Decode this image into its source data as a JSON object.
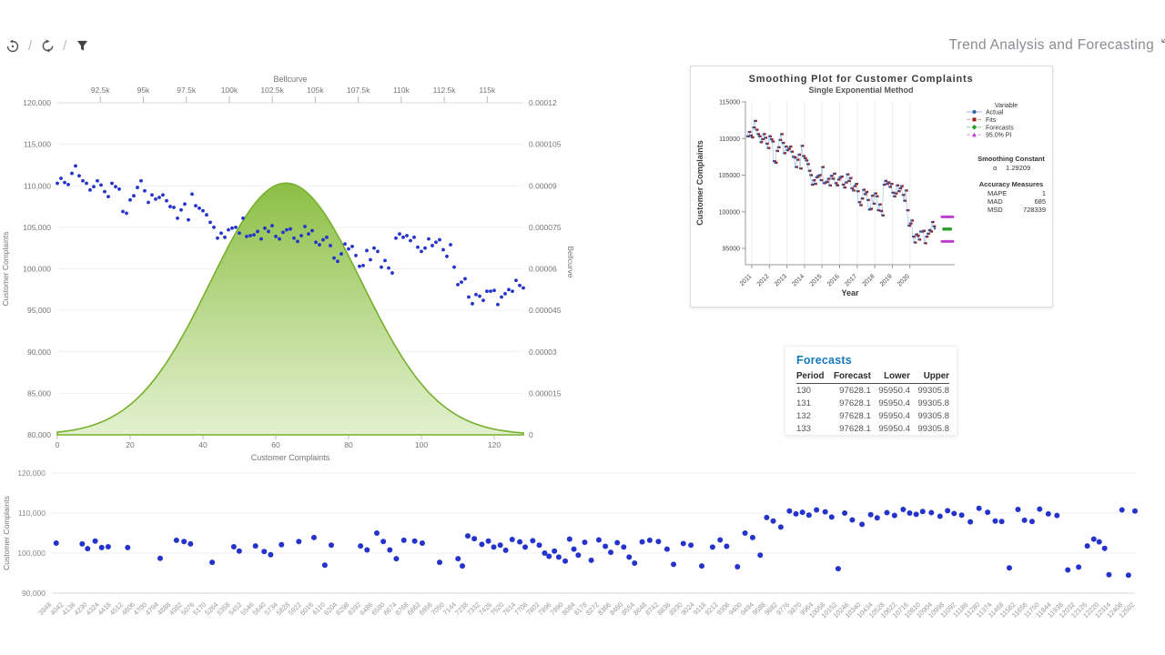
{
  "header": {
    "title": "Trend Analysis and Forecasting"
  },
  "toolbar": {
    "separator": "/",
    "icons": [
      "undo-history-icon",
      "refresh-icon",
      "filter-icon"
    ]
  },
  "forecasts_table": {
    "title": "Forecasts",
    "columns": [
      "Period",
      "Forecast",
      "Lower",
      "Upper"
    ],
    "rows": [
      [
        "130",
        "97628.1",
        "95950.4",
        "99305.8"
      ],
      [
        "131",
        "97628.1",
        "95950.4",
        "99305.8"
      ],
      [
        "132",
        "97628.1",
        "95950.4",
        "99305.8"
      ],
      [
        "133",
        "97628.1",
        "95950.4",
        "99305.8"
      ]
    ]
  },
  "chart_data": [
    {
      "id": "main",
      "type": "scatter+area",
      "top_axis": {
        "title": "Bellcurve",
        "ticks": [
          "92.5k",
          "95k",
          "97.5k",
          "100k",
          "102.5k",
          "105k",
          "107.5k",
          "110k",
          "112.5k",
          "115k"
        ],
        "tick_values": [
          92500,
          95000,
          97500,
          100000,
          102500,
          105000,
          107500,
          110000,
          112500,
          115000
        ],
        "range": [
          90000,
          117100
        ]
      },
      "left_axis": {
        "title": "Customer Complaints",
        "ticks": [
          "120,000",
          "115,000",
          "110,000",
          "105,000",
          "100,000",
          "95,000",
          "90,000",
          "85,000",
          "80,000"
        ],
        "tick_values": [
          120000,
          115000,
          110000,
          105000,
          100000,
          95000,
          90000,
          85000,
          80000
        ],
        "range": [
          80000,
          120000
        ]
      },
      "right_axis": {
        "title": "Bellcurve",
        "ticks": [
          "0.00012",
          "0.000105",
          "0.00009",
          "0.000075",
          "0.00006",
          "0.000045",
          "0.00003",
          "0.000015",
          "0"
        ],
        "tick_values": [
          0.00012,
          0.000105,
          9e-05,
          7.5e-05,
          6e-05,
          4.5e-05,
          3e-05,
          1.5e-05,
          0
        ],
        "range": [
          0,
          0.00012
        ]
      },
      "bottom_axis": {
        "title": "Customer Complaints",
        "ticks": [
          "0",
          "20",
          "40",
          "60",
          "80",
          "100",
          "120"
        ],
        "tick_values": [
          0,
          20,
          40,
          60,
          80,
          100,
          120
        ],
        "range": [
          0,
          128
        ]
      },
      "scatter_color": "#2433cb",
      "bellcurve": {
        "mean": 103300,
        "sigma": 4400,
        "peak": 9.1e-05,
        "stroke": "#76b02c",
        "fill_top": "#86bb3a",
        "fill_bottom": "#ddeec6"
      },
      "series": [
        110300,
        110900,
        110400,
        110150,
        111500,
        112400,
        111200,
        110600,
        110300,
        109500,
        109900,
        110600,
        110100,
        109300,
        108700,
        110300,
        109900,
        109600,
        106900,
        106700,
        108300,
        108800,
        109800,
        110600,
        109400,
        108000,
        108900,
        108400,
        108600,
        108900,
        108200,
        107500,
        107400,
        106100,
        107100,
        107800,
        105900,
        109000,
        107600,
        107300,
        107000,
        106500,
        105600,
        105000,
        103700,
        104300,
        103800,
        104700,
        104900,
        105000,
        104300,
        106100,
        103900,
        104000,
        104100,
        104500,
        103600,
        104900,
        104500,
        105200,
        103900,
        103600,
        104400,
        104700,
        104800,
        103700,
        103300,
        104000,
        105100,
        104200,
        104600,
        103200,
        102900,
        103500,
        103800,
        102800,
        101300,
        100900,
        101800,
        103000,
        102400,
        102700,
        101600,
        100300,
        100400,
        102200,
        101100,
        102500,
        102100,
        100200,
        101000,
        100100,
        99500,
        103700,
        104200,
        103800,
        104000,
        103400,
        103800,
        102600,
        102100,
        102500,
        103600,
        102800,
        103200,
        103500,
        102300,
        101500,
        102900,
        100200,
        98100,
        98400,
        98800,
        96600,
        95800,
        96900,
        96700,
        96200,
        97300,
        97300,
        97400,
        95700,
        96600,
        97000,
        97500,
        97300,
        98600,
        98000,
        97700
      ]
    },
    {
      "id": "smoothing",
      "type": "line",
      "title": "Smoothing Plot for Customer Complaints",
      "subtitle": "Single Exponential Method",
      "xlabel": "Year",
      "ylabel": "Customer Complaints",
      "y_ticks": [
        "115000",
        "110000",
        "105000",
        "100000",
        "95000"
      ],
      "y_tick_values": [
        115000,
        110000,
        105000,
        100000,
        95000
      ],
      "x_ticks": [
        "2011",
        "2012",
        "2013",
        "2014",
        "2015",
        "2016",
        "2017",
        "2018",
        "2019",
        "2020"
      ],
      "legend": {
        "header": "Variable",
        "entries": [
          {
            "label": "Actual",
            "color": "#2f5fa5",
            "line": "#9db8d6",
            "marker": "circle",
            "dash": ""
          },
          {
            "label": "Fits",
            "color": "#9c2222",
            "line": "#d4a0a0",
            "marker": "square",
            "dash": "4 2"
          },
          {
            "label": "Forecasts",
            "color": "#2a9d2a",
            "line": "#8fcf8f",
            "marker": "diamond",
            "dash": "4 2"
          },
          {
            "label": "95.0% PI",
            "color": "#bb40cc",
            "line": "#dda0e6",
            "marker": "triangle",
            "dash": "4 2"
          }
        ]
      },
      "stats": {
        "smoothing_header": "Smoothing Constant",
        "alpha_label": "α",
        "alpha_value": "1.29209",
        "accuracy_header": "Accuracy Measures",
        "measures": [
          [
            "MAPE",
            "1"
          ],
          [
            "MAD",
            "685"
          ],
          [
            "MSD",
            "728339"
          ]
        ]
      },
      "fits_lag": 1,
      "forecast_value": 97628.1,
      "pi_upper": 99305.8,
      "pi_lower": 95950.4
    },
    {
      "id": "bottom",
      "type": "scatter",
      "left_axis": {
        "title": "Customer Complaints",
        "ticks": [
          "120,000",
          "110,000",
          "100,000",
          "90,000"
        ],
        "tick_values": [
          120000,
          110000,
          100000,
          90000
        ],
        "range": [
          90000,
          120000
        ]
      },
      "x_ticks": [
        "3948",
        "4042",
        "4136",
        "4230",
        "4324",
        "4418",
        "4512",
        "4606",
        "4700",
        "4794",
        "4888",
        "4982",
        "5076",
        "5170",
        "5264",
        "5358",
        "5452",
        "5546",
        "5640",
        "5734",
        "5828",
        "5922",
        "6016",
        "6110",
        "6204",
        "6298",
        "6392",
        "6486",
        "6580",
        "6674",
        "6768",
        "6862",
        "6956",
        "7050",
        "7144",
        "7238",
        "7332",
        "7426",
        "7520",
        "7614",
        "7708",
        "7802",
        "7896",
        "7990",
        "8084",
        "8178",
        "8272",
        "8366",
        "8460",
        "8554",
        "8648",
        "8742",
        "8836",
        "8930",
        "9024",
        "9118",
        "9212",
        "9306",
        "9400",
        "9494",
        "9588",
        "9682",
        "9776",
        "9870",
        "9964",
        "10058",
        "10152",
        "10246",
        "10340",
        "10434",
        "10528",
        "10622",
        "10716",
        "10810",
        "10904",
        "10998",
        "11092",
        "11186",
        "11280",
        "11374",
        "11468",
        "11562",
        "11656",
        "11750",
        "11844",
        "11938",
        "12032",
        "12126",
        "12220",
        "12314",
        "12408",
        "12502"
      ],
      "scatter_color": "#2433cb",
      "points_thousands": [
        [
          0.004,
          102.5
        ],
        [
          0.028,
          102.3
        ],
        [
          0.033,
          101.1
        ],
        [
          0.04,
          103.0
        ],
        [
          0.046,
          101.4
        ],
        [
          0.052,
          101.6
        ],
        [
          0.07,
          101.4
        ],
        [
          0.1,
          98.7
        ],
        [
          0.115,
          103.2
        ],
        [
          0.122,
          102.9
        ],
        [
          0.128,
          102.3
        ],
        [
          0.148,
          97.7
        ],
        [
          0.168,
          101.6
        ],
        [
          0.173,
          100.5
        ],
        [
          0.188,
          101.8
        ],
        [
          0.196,
          100.4
        ],
        [
          0.202,
          99.6
        ],
        [
          0.212,
          102.1
        ],
        [
          0.228,
          102.9
        ],
        [
          0.242,
          103.9
        ],
        [
          0.252,
          97.0
        ],
        [
          0.258,
          102.0
        ],
        [
          0.285,
          101.8
        ],
        [
          0.291,
          100.8
        ],
        [
          0.3,
          105.0
        ],
        [
          0.306,
          102.9
        ],
        [
          0.312,
          100.8
        ],
        [
          0.318,
          98.6
        ],
        [
          0.325,
          103.2
        ],
        [
          0.335,
          103.0
        ],
        [
          0.342,
          102.5
        ],
        [
          0.358,
          97.7
        ],
        [
          0.375,
          98.6
        ],
        [
          0.379,
          96.8
        ],
        [
          0.384,
          104.3
        ],
        [
          0.39,
          103.6
        ],
        [
          0.397,
          102.2
        ],
        [
          0.403,
          103.0
        ],
        [
          0.408,
          101.5
        ],
        [
          0.414,
          102.0
        ],
        [
          0.419,
          100.7
        ],
        [
          0.425,
          103.4
        ],
        [
          0.432,
          102.8
        ],
        [
          0.437,
          101.5
        ],
        [
          0.444,
          103.1
        ],
        [
          0.45,
          102.0
        ],
        [
          0.455,
          100.0
        ],
        [
          0.459,
          99.2
        ],
        [
          0.464,
          100.5
        ],
        [
          0.468,
          99.0
        ],
        [
          0.474,
          98.0
        ],
        [
          0.478,
          103.5
        ],
        [
          0.482,
          101.0
        ],
        [
          0.486,
          99.5
        ],
        [
          0.492,
          102.7
        ],
        [
          0.498,
          98.2
        ],
        [
          0.505,
          103.3
        ],
        [
          0.511,
          101.7
        ],
        [
          0.516,
          100.2
        ],
        [
          0.522,
          102.6
        ],
        [
          0.528,
          101.5
        ],
        [
          0.533,
          99.0
        ],
        [
          0.538,
          97.5
        ],
        [
          0.545,
          102.8
        ],
        [
          0.552,
          103.2
        ],
        [
          0.56,
          102.9
        ],
        [
          0.568,
          101.0
        ],
        [
          0.574,
          97.2
        ],
        [
          0.583,
          102.4
        ],
        [
          0.59,
          102.0
        ],
        [
          0.6,
          96.8
        ],
        [
          0.61,
          101.5
        ],
        [
          0.617,
          103.3
        ],
        [
          0.623,
          101.7
        ],
        [
          0.633,
          96.6
        ],
        [
          0.64,
          105.0
        ],
        [
          0.647,
          103.9
        ],
        [
          0.654,
          99.5
        ],
        [
          0.66,
          108.9
        ],
        [
          0.666,
          108.0
        ],
        [
          0.673,
          106.5
        ],
        [
          0.681,
          110.5
        ],
        [
          0.687,
          109.8
        ],
        [
          0.693,
          110.2
        ],
        [
          0.699,
          109.5
        ],
        [
          0.706,
          110.8
        ],
        [
          0.714,
          110.3
        ],
        [
          0.72,
          109.0
        ],
        [
          0.726,
          96.1
        ],
        [
          0.732,
          110.0
        ],
        [
          0.739,
          108.3
        ],
        [
          0.748,
          107.2
        ],
        [
          0.756,
          109.6
        ],
        [
          0.762,
          108.8
        ],
        [
          0.771,
          110.1
        ],
        [
          0.778,
          109.4
        ],
        [
          0.786,
          110.9
        ],
        [
          0.792,
          110.0
        ],
        [
          0.798,
          109.7
        ],
        [
          0.804,
          110.4
        ],
        [
          0.812,
          110.1
        ],
        [
          0.82,
          109.2
        ],
        [
          0.827,
          110.6
        ],
        [
          0.833,
          109.9
        ],
        [
          0.84,
          109.5
        ],
        [
          0.848,
          107.8
        ],
        [
          0.856,
          111.2
        ],
        [
          0.864,
          110.2
        ],
        [
          0.871,
          108.0
        ],
        [
          0.877,
          107.9
        ],
        [
          0.884,
          96.3
        ],
        [
          0.892,
          110.9
        ],
        [
          0.898,
          108.2
        ],
        [
          0.905,
          107.9
        ],
        [
          0.912,
          111.0
        ],
        [
          0.92,
          109.8
        ],
        [
          0.928,
          109.4
        ],
        [
          0.938,
          95.8
        ],
        [
          0.948,
          96.5
        ],
        [
          0.956,
          101.8
        ],
        [
          0.962,
          103.5
        ],
        [
          0.967,
          102.8
        ],
        [
          0.972,
          101.2
        ],
        [
          0.976,
          94.6
        ],
        [
          0.988,
          110.8
        ],
        [
          0.994,
          94.5
        ],
        [
          1.0,
          110.5
        ]
      ]
    }
  ]
}
